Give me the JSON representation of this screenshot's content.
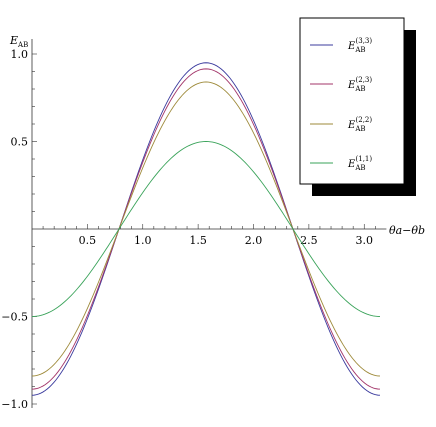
{
  "chart_data": {
    "type": "line",
    "title": "",
    "xlabel": "θa−θb",
    "ylabel": "E_AB",
    "xlim": [
      0,
      3.2
    ],
    "ylim": [
      -1.0,
      1.0
    ],
    "x_ticks": [
      0.5,
      1.0,
      1.5,
      2.0,
      2.5,
      3.0
    ],
    "x_tick_labels": [
      "0.5",
      "1.0",
      "1.5",
      "2.0",
      "2.5",
      "3.0"
    ],
    "y_ticks": [
      1.0,
      0.5,
      -0.5,
      -1.0
    ],
    "y_tick_labels": [
      "1.0",
      "0.5",
      "−0.5",
      "−1.0"
    ],
    "grid": false,
    "legend_position": "top-right",
    "curve_x": [
      0,
      0.1963,
      0.3927,
      0.589,
      0.7854,
      0.9817,
      1.1781,
      1.3744,
      1.5708,
      1.7671,
      1.9635,
      2.1598,
      2.3562,
      2.5525,
      2.7489,
      2.9452,
      3.1416
    ],
    "series": [
      {
        "name": "E_AB^(3,3)",
        "sup": "(3,3)",
        "color": "#3b3b9e",
        "values": [
          -0.95,
          -0.888,
          -0.672,
          -0.364,
          0,
          0.364,
          0.672,
          0.888,
          0.95,
          0.888,
          0.672,
          0.364,
          0,
          -0.364,
          -0.672,
          -0.888,
          -0.95
        ]
      },
      {
        "name": "E_AB^(2,3)",
        "sup": "(2,3)",
        "color": "#a3366a",
        "values": [
          -0.915,
          -0.856,
          -0.647,
          -0.35,
          0,
          0.35,
          0.647,
          0.856,
          0.915,
          0.856,
          0.647,
          0.35,
          0,
          -0.35,
          -0.647,
          -0.856,
          -0.915
        ]
      },
      {
        "name": "E_AB^(2,2)",
        "sup": "(2,2)",
        "color": "#9e8a3a",
        "values": [
          -0.84,
          -0.785,
          -0.594,
          -0.321,
          0,
          0.321,
          0.594,
          0.785,
          0.84,
          0.785,
          0.594,
          0.321,
          0,
          -0.321,
          -0.594,
          -0.785,
          -0.84
        ]
      },
      {
        "name": "E_AB^(1,1)",
        "sup": "(1,1)",
        "color": "#3aa35a",
        "values": [
          -0.5,
          -0.462,
          -0.354,
          -0.191,
          0,
          0.191,
          0.354,
          0.462,
          0.5,
          0.462,
          0.354,
          0.191,
          0,
          -0.191,
          -0.354,
          -0.462,
          -0.5
        ]
      }
    ]
  }
}
